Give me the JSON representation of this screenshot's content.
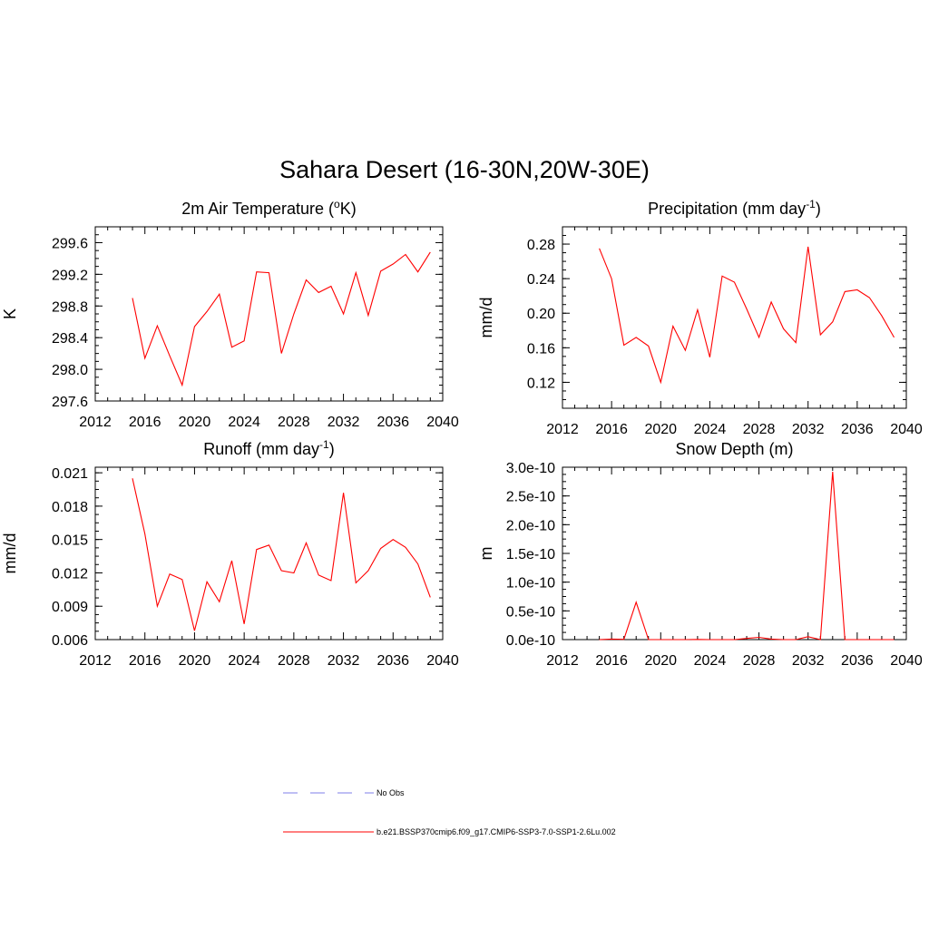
{
  "figure": {
    "title": "Sahara Desert (16-30N,20W-30E)"
  },
  "chart_data": [
    {
      "id": "temp",
      "type": "line",
      "title": "2m Air Temperature (",
      "title_sup": "o",
      "title_end": "K)",
      "ylabel": "K",
      "xlim": [
        2012,
        2040
      ],
      "ylim": [
        297.6,
        299.8
      ],
      "xticks": [
        "2012",
        "2016",
        "2020",
        "2024",
        "2028",
        "2032",
        "2036",
        "2040"
      ],
      "yticks": [
        "297.6",
        "298.0",
        "298.4",
        "298.8",
        "299.2",
        "299.6"
      ],
      "x": [
        2015,
        2016,
        2017,
        2018,
        2019,
        2020,
        2021,
        2022,
        2023,
        2024,
        2025,
        2026,
        2027,
        2028,
        2029,
        2030,
        2031,
        2032,
        2033,
        2034,
        2035,
        2036,
        2037,
        2038,
        2039
      ],
      "series": [
        {
          "color": "#ff0000",
          "values": [
            298.9,
            298.14,
            298.55,
            298.17,
            297.8,
            298.54,
            298.73,
            298.95,
            298.28,
            298.36,
            299.23,
            299.22,
            298.2,
            298.7,
            299.13,
            298.97,
            299.05,
            298.7,
            299.22,
            298.68,
            299.24,
            299.33,
            299.45,
            299.23,
            299.48
          ]
        }
      ]
    },
    {
      "id": "precip",
      "type": "line",
      "title": "Precipitation (mm day",
      "title_sup": "-1",
      "title_end": ")",
      "ylabel": "mm/d",
      "xlim": [
        2012,
        2040
      ],
      "ylim": [
        0.09,
        0.3
      ],
      "xticks": [
        "2012",
        "2016",
        "2020",
        "2024",
        "2028",
        "2032",
        "2036",
        "2040"
      ],
      "yticks": [
        "0.12",
        "0.16",
        "0.20",
        "0.24",
        "0.28"
      ],
      "x": [
        2015,
        2016,
        2017,
        2018,
        2019,
        2020,
        2021,
        2022,
        2023,
        2024,
        2025,
        2026,
        2027,
        2028,
        2029,
        2030,
        2031,
        2032,
        2033,
        2034,
        2035,
        2036,
        2037,
        2038,
        2039
      ],
      "series": [
        {
          "color": "#ff0000",
          "values": [
            0.275,
            0.24,
            0.163,
            0.172,
            0.162,
            0.12,
            0.185,
            0.157,
            0.204,
            0.149,
            0.243,
            0.236,
            0.205,
            0.172,
            0.213,
            0.182,
            0.166,
            0.277,
            0.175,
            0.19,
            0.225,
            0.227,
            0.218,
            0.197,
            0.172
          ]
        }
      ]
    },
    {
      "id": "runoff",
      "type": "line",
      "title": "Runoff (mm day",
      "title_sup": "-1",
      "title_end": ")",
      "ylabel": "mm/d",
      "xlim": [
        2012,
        2040
      ],
      "ylim": [
        0.006,
        0.0215
      ],
      "xticks": [
        "2012",
        "2016",
        "2020",
        "2024",
        "2028",
        "2032",
        "2036",
        "2040"
      ],
      "yticks": [
        "0.006",
        "0.009",
        "0.012",
        "0.015",
        "0.018",
        "0.021"
      ],
      "x": [
        2015,
        2016,
        2017,
        2018,
        2019,
        2020,
        2021,
        2022,
        2023,
        2024,
        2025,
        2026,
        2027,
        2028,
        2029,
        2030,
        2031,
        2032,
        2033,
        2034,
        2035,
        2036,
        2037,
        2038,
        2039
      ],
      "series": [
        {
          "color": "#ff0000",
          "values": [
            0.0205,
            0.0155,
            0.009,
            0.0119,
            0.0114,
            0.0068,
            0.0112,
            0.0094,
            0.0131,
            0.0074,
            0.0141,
            0.0145,
            0.0122,
            0.012,
            0.0147,
            0.0118,
            0.0113,
            0.0192,
            0.0111,
            0.0122,
            0.0142,
            0.015,
            0.0143,
            0.0128,
            0.0098
          ]
        }
      ]
    },
    {
      "id": "snow",
      "type": "line",
      "title": "Snow Depth (m)",
      "title_sup": "",
      "title_end": "",
      "ylabel": "m",
      "xlim": [
        2012,
        2040
      ],
      "ylim": [
        0,
        3e-10
      ],
      "xticks": [
        "2012",
        "2016",
        "2020",
        "2024",
        "2028",
        "2032",
        "2036",
        "2040"
      ],
      "yticks": [
        "0.0e-10",
        "0.5e-10",
        "1.0e-10",
        "1.5e-10",
        "2.0e-10",
        "2.5e-10",
        "3.0e-10"
      ],
      "x": [
        2015,
        2016,
        2017,
        2018,
        2019,
        2020,
        2021,
        2022,
        2023,
        2024,
        2025,
        2026,
        2027,
        2028,
        2029,
        2030,
        2031,
        2032,
        2033,
        2034,
        2035,
        2036,
        2037,
        2038,
        2039
      ],
      "series": [
        {
          "color": "#ff0000",
          "values": [
            0,
            1e-12,
            5e-13,
            6.5e-11,
            0,
            0,
            0,
            0,
            3e-13,
            0,
            0,
            0,
            2e-12,
            4e-12,
            1e-12,
            0,
            0,
            5e-12,
            0,
            2.92e-10,
            0,
            0,
            0,
            0,
            0
          ]
        }
      ]
    }
  ],
  "legend": {
    "items": [
      {
        "label": "No Obs",
        "color": "#9999ee",
        "dash": "dashed"
      },
      {
        "label": "b.e21.BSSP370cmip6.f09_g17.CMIP6-SSP3-7.0-SSP1-2.6Lu.002",
        "color": "#ff0000",
        "dash": "solid"
      }
    ]
  }
}
